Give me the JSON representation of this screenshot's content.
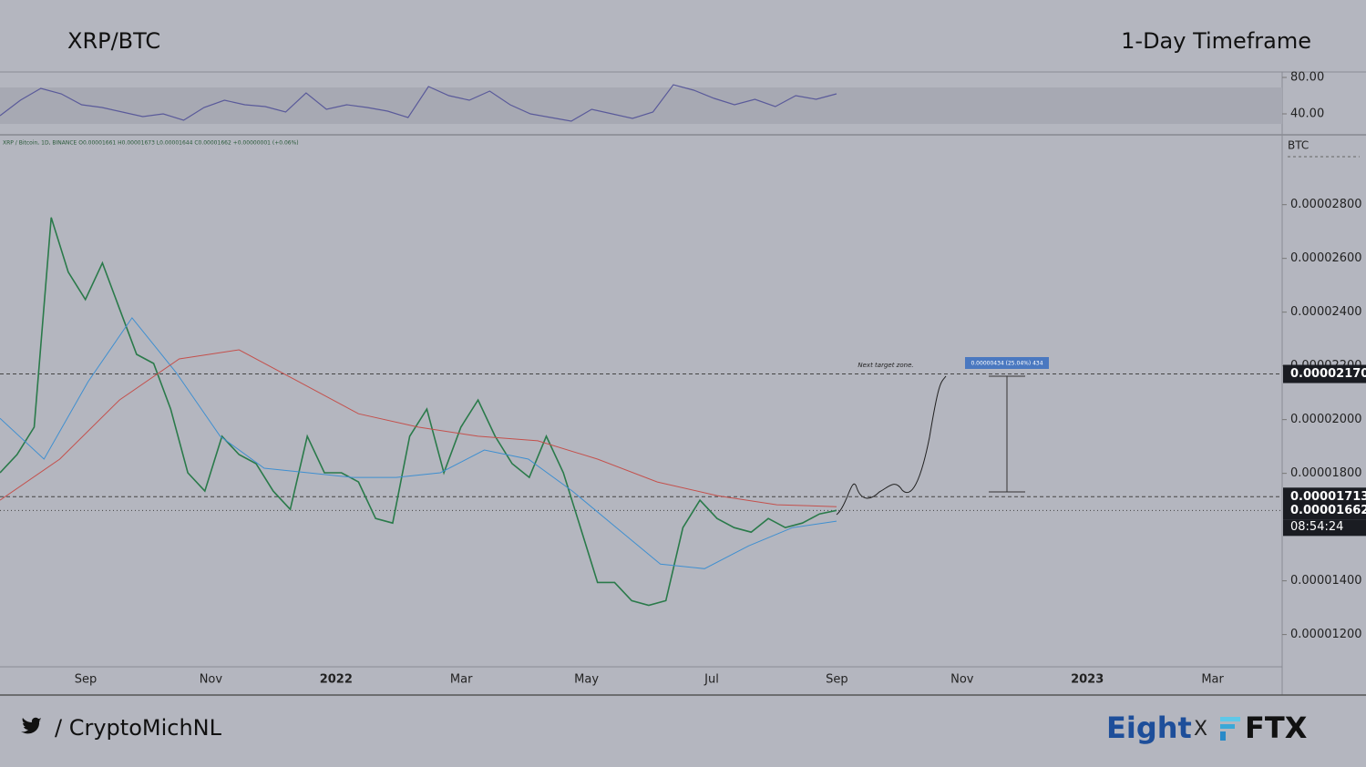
{
  "chart_data": {
    "type": "line",
    "title": "XRP/BTC",
    "subtitle": "1-Day Timeframe",
    "legend_text": "XRP / Bitcoin, 1D, BINANCE O0.00001661 H0.00001673 L0.00001644 C0.00001662 +0.00000001 (+0.06%)",
    "y_unit": "BTC",
    "ylim": [
      1.08e-05,
      3.06e-05
    ],
    "yticks": [
      {
        "value": 1.2e-05,
        "label": "0.00001200"
      },
      {
        "value": 1.4e-05,
        "label": "0.00001400"
      },
      {
        "value": 1.8e-05,
        "label": "0.00001800"
      },
      {
        "value": 2e-05,
        "label": "0.00002000"
      },
      {
        "value": 2.2e-05,
        "label": "0.00002200"
      },
      {
        "value": 2.4e-05,
        "label": "0.00002400"
      },
      {
        "value": 2.6e-05,
        "label": "0.00002600"
      },
      {
        "value": 2.8e-05,
        "label": "0.00002800"
      }
    ],
    "xticks": [
      "Sep",
      "Nov",
      "2022",
      "Mar",
      "May",
      "Jul",
      "Sep",
      "Nov",
      "2023",
      "Mar"
    ],
    "series": [
      {
        "color": "#2a7a4a",
        "values": [
          1.802e-05,
          1.87e-05,
          1.972e-05,
          2.752e-05,
          2.549e-05,
          2.447e-05,
          2.583e-05,
          2.413e-05,
          2.243e-05,
          2.209e-05,
          2.039e-05,
          1.802e-05,
          1.734e-05,
          1.938e-05,
          1.87e-05,
          1.836e-05,
          1.734e-05,
          1.666e-05,
          1.938e-05,
          1.802e-05,
          1.802e-05,
          1.768e-05,
          1.632e-05,
          1.615e-05,
          1.938e-05,
          2.039e-05,
          1.802e-05,
          1.972e-05,
          2.073e-05,
          1.938e-05,
          1.836e-05,
          1.785e-05,
          1.938e-05,
          1.802e-05,
          1.598e-05,
          1.394e-05,
          1.394e-05,
          1.326e-05,
          1.309e-05,
          1.326e-05,
          1.598e-05,
          1.7e-05,
          1.632e-05,
          1.598e-05,
          1.581e-05,
          1.632e-05,
          1.598e-05,
          1.615e-05,
          1.649e-05,
          1.662e-05
        ]
      },
      {
        "color": "#3f8fd0",
        "values": [
          2.005e-05,
          1.853e-05,
          2.141e-05,
          2.379e-05,
          2.175e-05,
          1.938e-05,
          1.819e-05,
          1.802e-05,
          1.785e-05,
          1.785e-05,
          1.802e-05,
          1.887e-05,
          1.853e-05,
          1.734e-05,
          1.598e-05,
          1.462e-05,
          1.445e-05,
          1.53e-05,
          1.598e-05,
          1.622e-05
        ]
      },
      {
        "color": "#c4504c",
        "values": [
          1.7e-05,
          1.853e-05,
          2.073e-05,
          2.226e-05,
          2.26e-05,
          2.141e-05,
          2.022e-05,
          1.972e-05,
          1.938e-05,
          1.921e-05,
          1.853e-05,
          1.768e-05,
          1.717e-05,
          1.683e-05,
          1.676e-05
        ]
      }
    ],
    "levels": [
      {
        "value": 2.17e-05,
        "label": "0.00002170"
      },
      {
        "value": 1.713e-05,
        "label": "0.00001713"
      },
      {
        "value": 1.662e-05,
        "label": "0.00001662"
      }
    ],
    "countdown": "08:54:24",
    "annotation": "Next target zone.",
    "measure_label": "0.00000434 (25.04%) 434",
    "rsi": {
      "ylim": [
        17,
        86
      ],
      "yticks": [
        {
          "value": 40,
          "label": "40.00"
        },
        {
          "value": 80,
          "label": "80.00"
        }
      ],
      "color": "#5a5a9a",
      "values": [
        38,
        55,
        68,
        62,
        50,
        47,
        42,
        37,
        40,
        33,
        47,
        55,
        50,
        48,
        42,
        63,
        45,
        50,
        47,
        43,
        36,
        70,
        60,
        55,
        65,
        50,
        40,
        36,
        32,
        45,
        40,
        35,
        42,
        72,
        66,
        57,
        50,
        56,
        48,
        60,
        56,
        62
      ]
    },
    "footer": {
      "handle": "/ CryptoMichNL",
      "brand1": "Eight",
      "x": "X",
      "brand2": "FTX"
    }
  }
}
